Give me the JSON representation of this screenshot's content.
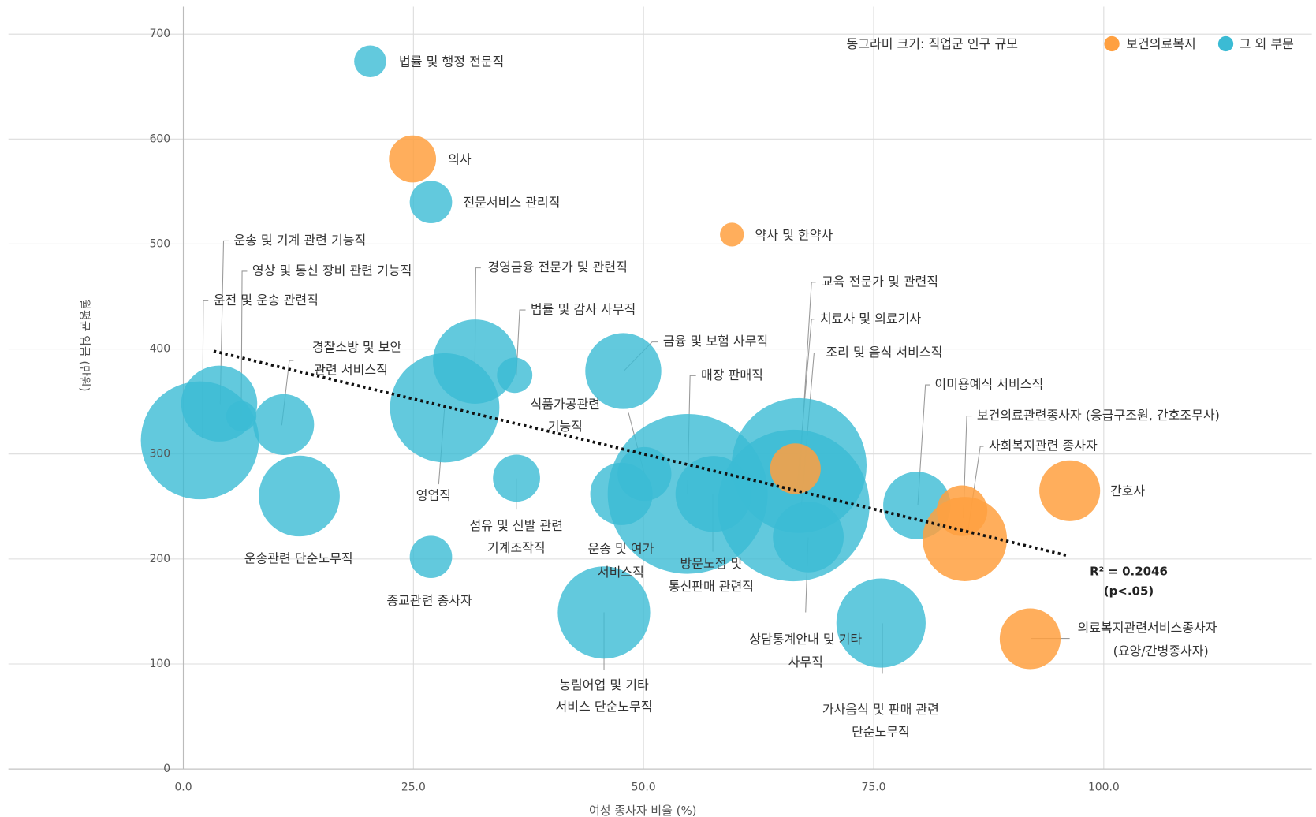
{
  "chart_data": {
    "type": "bubble",
    "x_label": "여성 종사자 비율 (%)",
    "y_label": "월평균 임금 (만원)",
    "size_note": "동그라미 크기: 직업군 인구 규모",
    "xlim": [
      -19,
      122.6
    ],
    "ylim": [
      0,
      726
    ],
    "xticks": [
      {
        "value": 0,
        "label": "0.0"
      },
      {
        "value": 25,
        "label": "25.0"
      },
      {
        "value": 50,
        "label": "50.0"
      },
      {
        "value": 75,
        "label": "75.0"
      },
      {
        "value": 100,
        "label": "100.0"
      }
    ],
    "yticks": [
      0,
      100,
      200,
      300,
      400,
      500,
      600,
      700
    ],
    "grid": true,
    "legend": "top-right",
    "series": [
      {
        "name": "그 외 부문",
        "color": "#3bbbd4",
        "x": [
          20.3,
          26.9,
          1.8,
          3.9,
          6.3,
          10.9,
          12.6,
          31.7,
          28.4,
          36.0,
          36.2,
          26.9,
          47.8,
          50.1,
          47.6,
          54.8,
          57.6,
          45.7,
          66.9,
          66.3,
          67.9,
          75.8,
          79.7
        ],
        "values": [
          674,
          540,
          313,
          348,
          336,
          328,
          260,
          388,
          344,
          375,
          277,
          202,
          379,
          281,
          262,
          262,
          262,
          149,
          289,
          251,
          221,
          139,
          251
        ],
        "sizes": [
          3.6,
          6.3,
          49,
          20.3,
          3.2,
          13,
          23,
          25,
          42,
          4.4,
          7.8,
          6.3,
          20.3,
          10.2,
          13.7,
          90,
          20.3,
          30,
          64,
          81,
          17.6,
          28,
          16
        ],
        "labels": [
          [
            "법률 및 행정 전문직"
          ],
          [
            "전문서비스 관리직"
          ],
          [
            "운전 및 운송 관련직"
          ],
          [
            "운송 및 기계 관련 기능직"
          ],
          [
            "영상 및 통신 장비 관련 기능직"
          ],
          [
            "경찰소방 및 보안",
            "관련 서비스직"
          ],
          [
            "운송관련 단순노무직"
          ],
          [
            "경영금융 전문가 및 관련직"
          ],
          [
            "영업직"
          ],
          [
            "법률 및 감사 사무직"
          ],
          [
            "섬유 및 신발 관련",
            "기계조작직"
          ],
          [
            "종교관련 종사자"
          ],
          [
            "금융 및 보험 사무직"
          ],
          [
            "식품가공관련",
            "기능직"
          ],
          [
            "운송 및 여가",
            "서비스직"
          ],
          [
            "매장 판매직"
          ],
          [
            "방문노점 및",
            "통신판매 관련직"
          ],
          [
            "농림어업 및 기타",
            "서비스 단순노무직"
          ],
          [
            "교육 전문가 및 관련직"
          ],
          [
            "조리 및 음식 서비스직"
          ],
          [
            "상담통계안내 및 기타",
            "사무직"
          ],
          [
            "가사음식 및 판매 관련",
            "단순노무직"
          ],
          [
            "이미용예식 서비스직"
          ]
        ]
      },
      {
        "name": "보건의료복지",
        "color": "#ffa040",
        "x": [
          24.9,
          59.6,
          66.5,
          84.6,
          84.9,
          96.3,
          92.0
        ],
        "values": [
          581,
          509,
          286,
          246,
          219,
          265,
          124
        ],
        "sizes": [
          7.8,
          2,
          9,
          9,
          25,
          13,
          13
        ],
        "labels": [
          [
            "의사"
          ],
          [
            "약사 및 한약사"
          ],
          [
            "치료사 및 의료기사"
          ],
          [
            "보건의료관련종사자 (응급구조원, 간호조무사)"
          ],
          [
            "사회복지관련 종사자"
          ],
          [
            "간호사"
          ],
          [
            "의료복지관련서비스종사자",
            "(요양/간병종사자)"
          ]
        ]
      }
    ],
    "trendline": {
      "x": [
        3.3,
        96.2
      ],
      "y": [
        398,
        203
      ]
    },
    "annotations": [
      "R² = 0.2046",
      "(p<.05)"
    ]
  }
}
